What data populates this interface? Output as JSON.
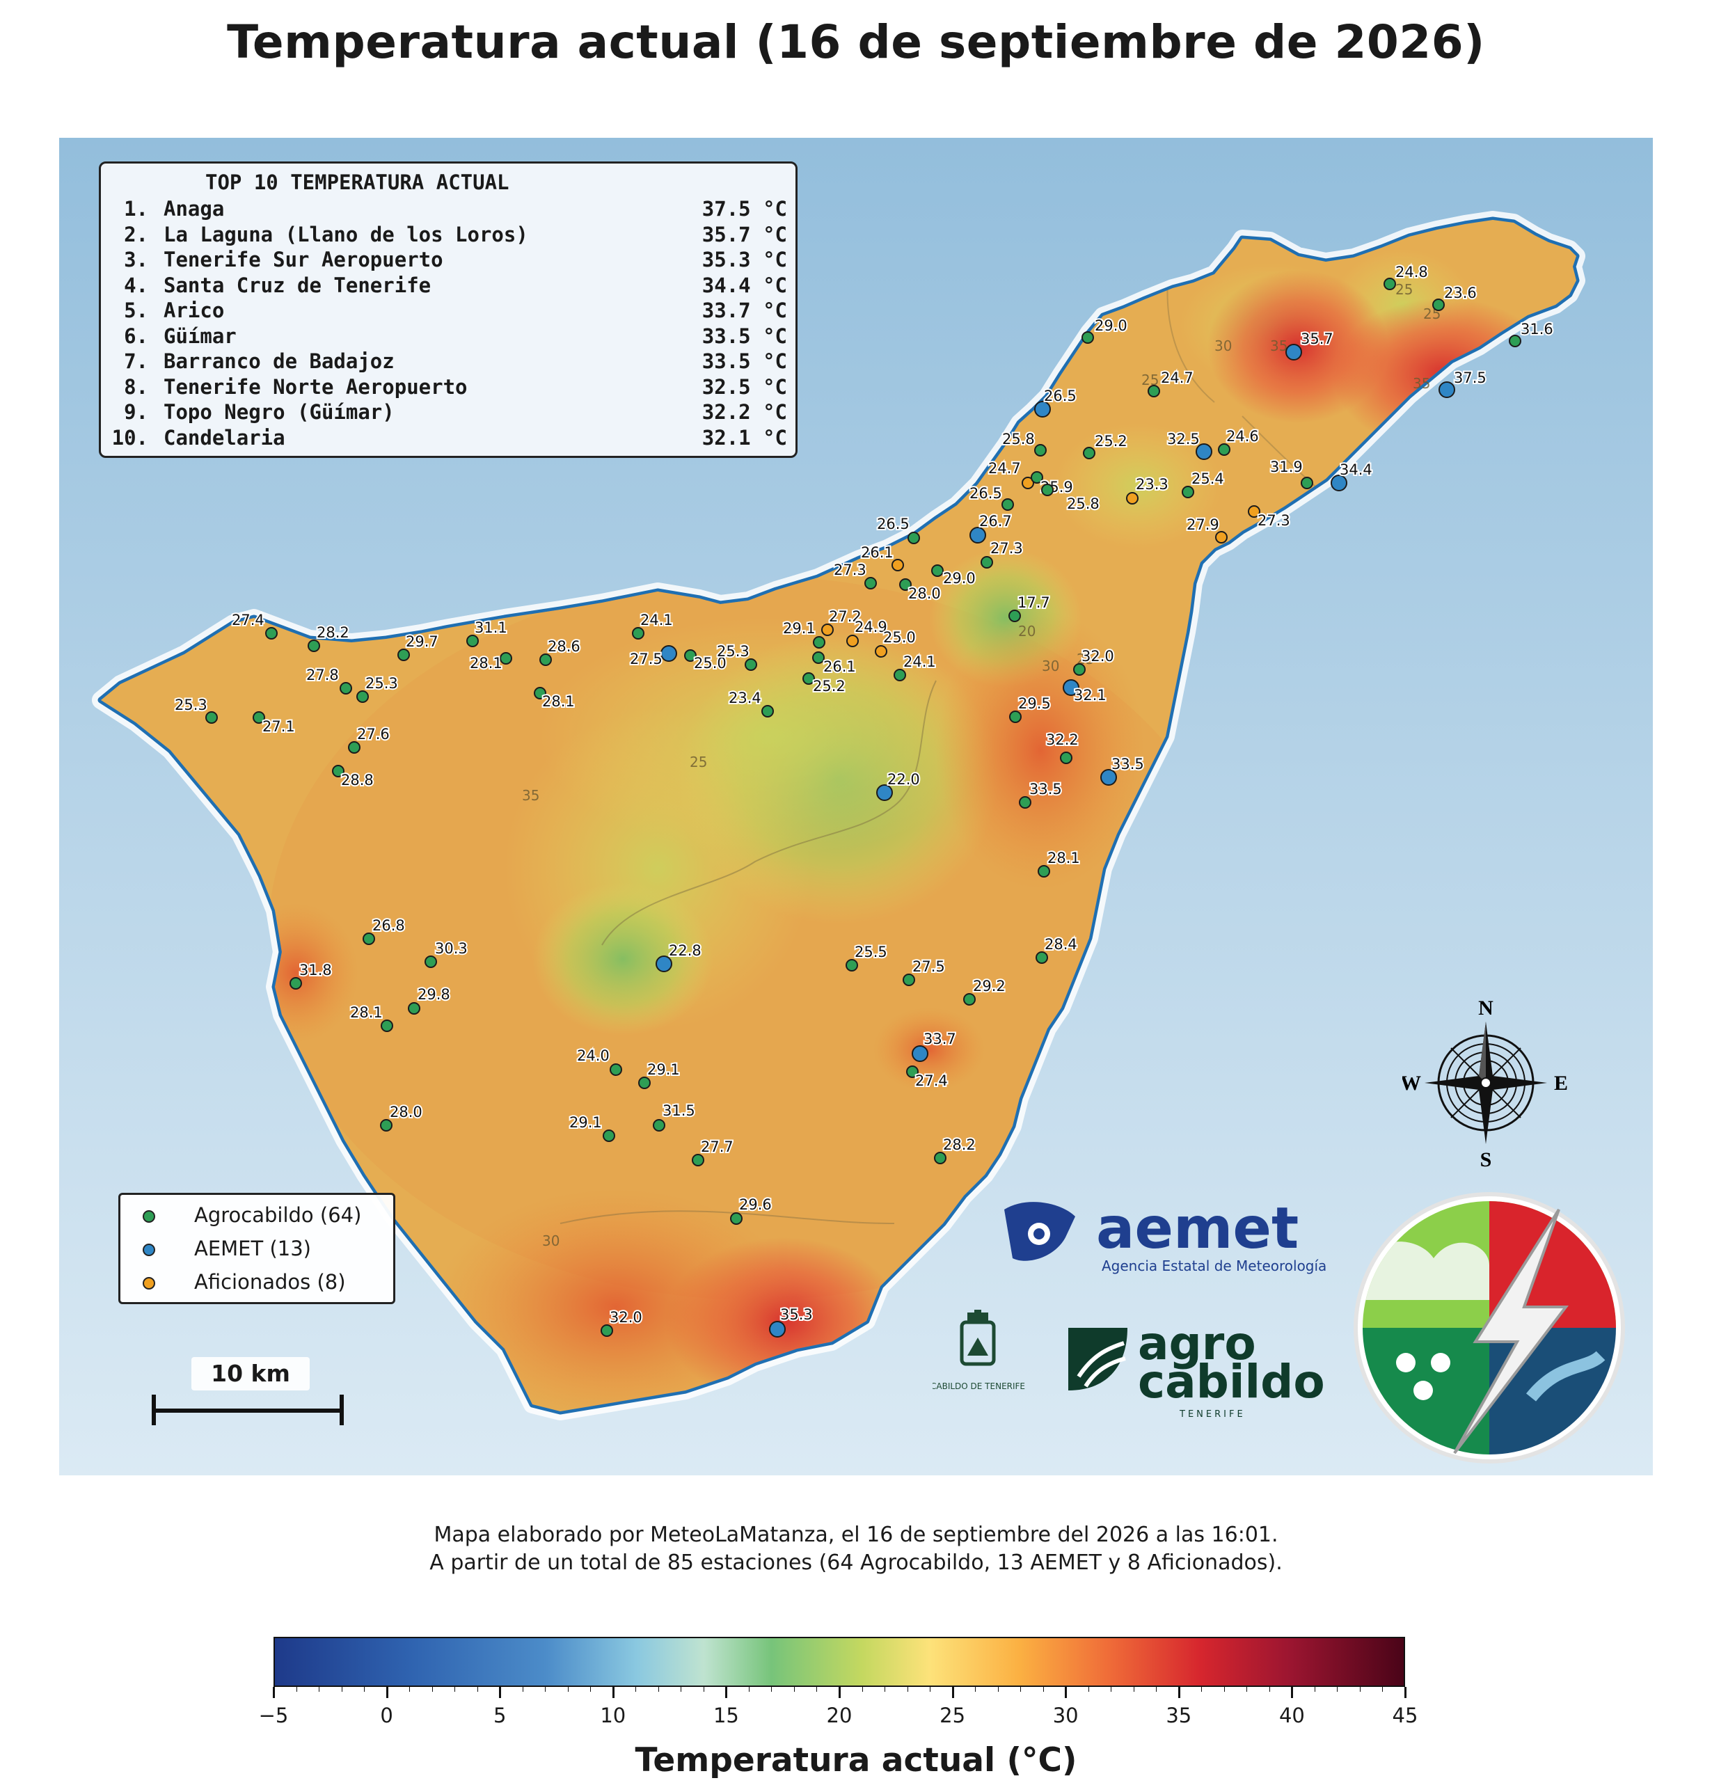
{
  "title": "Temperatura actual (16 de septiembre de 2026)",
  "top10": {
    "title": "TOP 10 TEMPERATURA ACTUAL",
    "rows": [
      {
        "rank": "1.",
        "name": "Anaga",
        "value": "37.5 °C"
      },
      {
        "rank": "2.",
        "name": "La Laguna (Llano de los Loros)",
        "value": "35.7 °C"
      },
      {
        "rank": "3.",
        "name": "Tenerife Sur Aeropuerto",
        "value": "35.3 °C"
      },
      {
        "rank": "4.",
        "name": "Santa Cruz de Tenerife",
        "value": "34.4 °C"
      },
      {
        "rank": "5.",
        "name": "Arico",
        "value": "33.7 °C"
      },
      {
        "rank": "6.",
        "name": "Güímar",
        "value": "33.5 °C"
      },
      {
        "rank": "7.",
        "name": "Barranco de Badajoz",
        "value": "33.5 °C"
      },
      {
        "rank": "8.",
        "name": "Tenerife Norte Aeropuerto",
        "value": "32.5 °C"
      },
      {
        "rank": "9.",
        "name": "Topo Negro (Güímar)",
        "value": "32.2 °C"
      },
      {
        "rank": "10.",
        "name": "Candelaria",
        "value": "32.1 °C"
      }
    ]
  },
  "legend": [
    {
      "label": "Agrocabildo (64)",
      "color": "#2e9e55"
    },
    {
      "label": "AEMET (13)",
      "color": "#2f86c5"
    },
    {
      "label": "Aficionados (8)",
      "color": "#f0a020"
    }
  ],
  "scale_bar": "10 km",
  "compass": {
    "n": "N",
    "s": "S",
    "e": "E",
    "w": "W"
  },
  "logos": {
    "aemet_name": "aemet",
    "aemet_sub": "Agencia Estatal de Meteorología",
    "agro_line1": "agro",
    "agro_line2": "cabildo",
    "agro_sub": "TENERIFE",
    "cabildo_text": "CABILDO DE TENERIFE"
  },
  "footer": {
    "line1": "Mapa elaborado por MeteoLaMatanza, el 16 de septiembre del 2026 a las 16:01.",
    "line2": "A partir de un total de 85 estaciones (64 Agrocabildo, 13 AEMET y 8 Aficionados)."
  },
  "colorbar": {
    "label": "Temperatura actual (°C)",
    "min": -5,
    "max": 45,
    "ticks": [
      "−5",
      "0",
      "5",
      "10",
      "15",
      "20",
      "25",
      "30",
      "35",
      "40",
      "45"
    ]
  },
  "contour_labels": [
    "20",
    "25",
    "30",
    "35"
  ],
  "station_colors": {
    "agro": "#2e9e55",
    "aemet": "#2f86c5",
    "afic": "#f0a020"
  },
  "stations": [
    {
      "t": "agro",
      "v": "24.8"
    },
    {
      "t": "agro",
      "v": "23.6"
    },
    {
      "t": "agro",
      "v": "31.6"
    },
    {
      "t": "aemet",
      "v": "35.7"
    },
    {
      "t": "aemet",
      "v": "37.5"
    },
    {
      "t": "agro",
      "v": "29.0"
    },
    {
      "t": "agro",
      "v": "24.7"
    },
    {
      "t": "aemet",
      "v": "26.5"
    },
    {
      "t": "agro",
      "v": "25.8"
    },
    {
      "t": "agro",
      "v": "25.2"
    },
    {
      "t": "aemet",
      "v": "32.5"
    },
    {
      "t": "agro",
      "v": "24.6"
    },
    {
      "t": "agro",
      "v": "31.9"
    },
    {
      "t": "aemet",
      "v": "34.4"
    },
    {
      "t": "afic",
      "v": "24.7"
    },
    {
      "t": "agro",
      "v": "25.9"
    },
    {
      "t": "agro",
      "v": "26.5"
    },
    {
      "t": "agro",
      "v": "25.8"
    },
    {
      "t": "afic",
      "v": "23.3"
    },
    {
      "t": "agro",
      "v": "25.4"
    },
    {
      "t": "afic",
      "v": "27.3"
    },
    {
      "t": "afic",
      "v": "27.9"
    },
    {
      "t": "agro",
      "v": "26.5"
    },
    {
      "t": "aemet",
      "v": "26.7"
    },
    {
      "t": "afic",
      "v": "26.1"
    },
    {
      "t": "agro",
      "v": "27.3"
    },
    {
      "t": "agro",
      "v": "29.0"
    },
    {
      "t": "agro",
      "v": "27.3"
    },
    {
      "t": "agro",
      "v": "28.0"
    },
    {
      "t": "agro",
      "v": "17.7"
    },
    {
      "t": "agro",
      "v": "27.4"
    },
    {
      "t": "agro",
      "v": "28.2"
    },
    {
      "t": "agro",
      "v": "29.7"
    },
    {
      "t": "agro",
      "v": "31.1"
    },
    {
      "t": "agro",
      "v": "24.1"
    },
    {
      "t": "agro",
      "v": "29.1"
    },
    {
      "t": "afic",
      "v": "27.2"
    },
    {
      "t": "afic",
      "v": "24.9"
    },
    {
      "t": "afic",
      "v": "25.0"
    },
    {
      "t": "agro",
      "v": "28.1"
    },
    {
      "t": "agro",
      "v": "28.6"
    },
    {
      "t": "aemet",
      "v": "27.5"
    },
    {
      "t": "agro",
      "v": "25.0"
    },
    {
      "t": "agro",
      "v": "25.3"
    },
    {
      "t": "agro",
      "v": "26.1"
    },
    {
      "t": "agro",
      "v": "24.1"
    },
    {
      "t": "agro",
      "v": "32.0"
    },
    {
      "t": "agro",
      "v": "27.8"
    },
    {
      "t": "agro",
      "v": "25.3"
    },
    {
      "t": "agro",
      "v": "28.1"
    },
    {
      "t": "agro",
      "v": "25.2"
    },
    {
      "t": "aemet",
      "v": "32.1"
    },
    {
      "t": "agro",
      "v": "25.3"
    },
    {
      "t": "agro",
      "v": "27.1"
    },
    {
      "t": "agro",
      "v": "23.4"
    },
    {
      "t": "agro",
      "v": "29.5"
    },
    {
      "t": "agro",
      "v": "27.6"
    },
    {
      "t": "agro",
      "v": "32.2"
    },
    {
      "t": "aemet",
      "v": "33.5"
    },
    {
      "t": "agro",
      "v": "28.8"
    },
    {
      "t": "aemet",
      "v": "22.0"
    },
    {
      "t": "agro",
      "v": "33.5"
    },
    {
      "t": "agro",
      "v": "28.1"
    },
    {
      "t": "agro",
      "v": "26.8"
    },
    {
      "t": "agro",
      "v": "28.4"
    },
    {
      "t": "agro",
      "v": "30.3"
    },
    {
      "t": "aemet",
      "v": "22.8"
    },
    {
      "t": "agro",
      "v": "25.5"
    },
    {
      "t": "agro",
      "v": "27.5"
    },
    {
      "t": "agro",
      "v": "31.8"
    },
    {
      "t": "agro",
      "v": "29.8"
    },
    {
      "t": "agro",
      "v": "29.2"
    },
    {
      "t": "agro",
      "v": "28.1"
    },
    {
      "t": "aemet",
      "v": "33.7"
    },
    {
      "t": "agro",
      "v": "24.0"
    },
    {
      "t": "agro",
      "v": "29.1"
    },
    {
      "t": "agro",
      "v": "27.4"
    },
    {
      "t": "agro",
      "v": "28.0"
    },
    {
      "t": "agro",
      "v": "31.5"
    },
    {
      "t": "agro",
      "v": "29.1"
    },
    {
      "t": "agro",
      "v": "27.7"
    },
    {
      "t": "agro",
      "v": "28.2"
    },
    {
      "t": "agro",
      "v": "29.6"
    },
    {
      "t": "agro",
      "v": "32.0"
    },
    {
      "t": "aemet",
      "v": "35.3"
    }
  ]
}
